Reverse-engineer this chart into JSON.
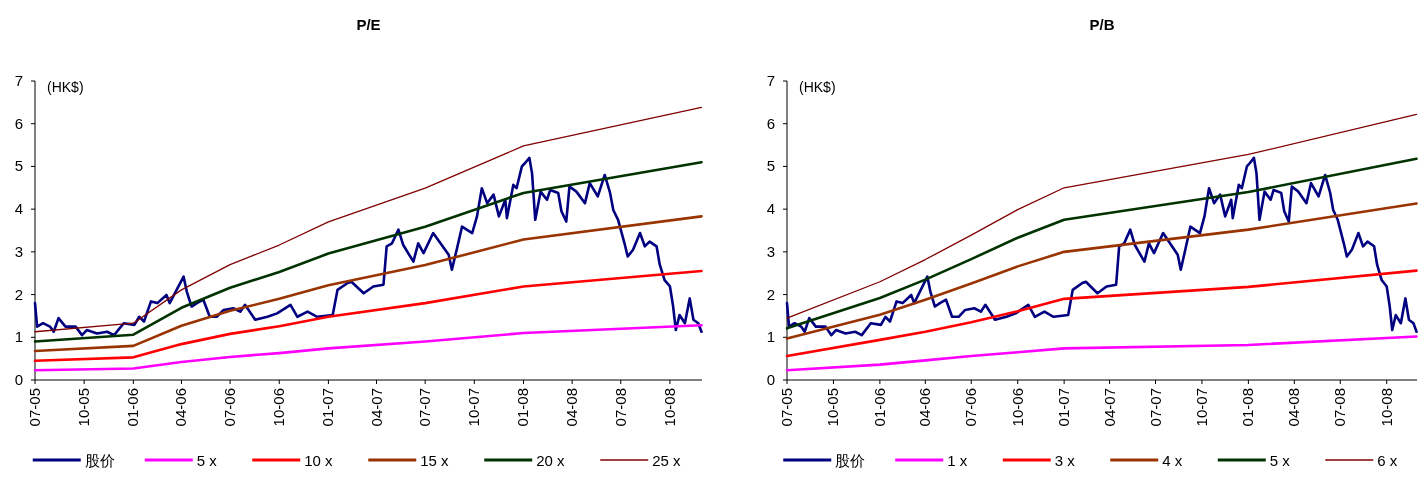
{
  "chart_data": [
    {
      "type": "line",
      "title": "P/E",
      "ylabel": "(HK$)",
      "xlim": [
        "2005-07-01",
        "2008-11-30"
      ],
      "ylim": [
        0,
        7
      ],
      "yticks": [
        0,
        1,
        2,
        3,
        4,
        5,
        6,
        7
      ],
      "xticks": [
        {
          "value": "2005-07-01",
          "label": "07-05"
        },
        {
          "value": "2005-10-01",
          "label": "10-05"
        },
        {
          "value": "2006-01-01",
          "label": "01-06"
        },
        {
          "value": "2006-04-01",
          "label": "04-06"
        },
        {
          "value": "2006-07-01",
          "label": "07-06"
        },
        {
          "value": "2006-10-01",
          "label": "10-06"
        },
        {
          "value": "2007-01-01",
          "label": "01-07"
        },
        {
          "value": "2007-04-01",
          "label": "04-07"
        },
        {
          "value": "2007-07-01",
          "label": "07-07"
        },
        {
          "value": "2007-10-01",
          "label": "10-07"
        },
        {
          "value": "2008-01-01",
          "label": "01-08"
        },
        {
          "value": "2008-04-01",
          "label": "04-08"
        },
        {
          "value": "2008-07-01",
          "label": "07-08"
        },
        {
          "value": "2008-10-01",
          "label": "10-08"
        }
      ],
      "legend": "bottom",
      "series": [
        {
          "name": "股价",
          "color": "#000080",
          "x": [
            "2005-07-01",
            "2005-07-05",
            "2005-07-16",
            "2005-07-29",
            "2005-08-05",
            "2005-08-14",
            "2005-08-27",
            "2005-09-15",
            "2005-09-27",
            "2005-10-06",
            "2005-10-25",
            "2005-11-13",
            "2005-11-26",
            "2005-12-14",
            "2006-01-03",
            "2006-01-12",
            "2006-01-21",
            "2006-02-03",
            "2006-02-15",
            "2006-03-04",
            "2006-03-10",
            "2006-03-23",
            "2006-04-05",
            "2006-04-11",
            "2006-04-20",
            "2006-04-30",
            "2006-05-12",
            "2006-05-24",
            "2006-06-06",
            "2006-06-19",
            "2006-07-07",
            "2006-07-20",
            "2006-07-29",
            "2006-08-17",
            "2006-09-09",
            "2006-09-27",
            "2006-10-22",
            "2006-11-04",
            "2006-11-23",
            "2006-12-11",
            "2007-01-09",
            "2007-01-18",
            "2007-02-06",
            "2007-02-13",
            "2007-03-08",
            "2007-03-26",
            "2007-04-14",
            "2007-04-20",
            "2007-04-30",
            "2007-05-12",
            "2007-05-21",
            "2007-06-09",
            "2007-06-18",
            "2007-06-28",
            "2007-07-16",
            "2007-08-01",
            "2007-08-14",
            "2007-08-20",
            "2007-08-29",
            "2007-09-08",
            "2007-09-27",
            "2007-10-06",
            "2007-10-15",
            "2007-10-25",
            "2007-11-06",
            "2007-11-16",
            "2007-11-28",
            "2007-12-01",
            "2007-12-13",
            "2007-12-19",
            "2007-12-29",
            "2008-01-04",
            "2008-01-12",
            "2008-01-17",
            "2008-01-23",
            "2008-02-02",
            "2008-02-14",
            "2008-02-20",
            "2008-03-06",
            "2008-03-12",
            "2008-03-21",
            "2008-03-27",
            "2008-04-09",
            "2008-04-25",
            "2008-05-04",
            "2008-05-19",
            "2008-06-01",
            "2008-06-11",
            "2008-06-17",
            "2008-06-26",
            "2008-07-08",
            "2008-07-14",
            "2008-07-24",
            "2008-08-06",
            "2008-08-15",
            "2008-08-24",
            "2008-09-06",
            "2008-09-12",
            "2008-09-21",
            "2008-10-01",
            "2008-10-07",
            "2008-10-12",
            "2008-10-19",
            "2008-10-29",
            "2008-11-07",
            "2008-11-14",
            "2008-11-23",
            "2008-11-29"
          ],
          "values": [
            1.8,
            1.25,
            1.33,
            1.25,
            1.13,
            1.45,
            1.25,
            1.25,
            1.05,
            1.17,
            1.09,
            1.13,
            1.05,
            1.33,
            1.29,
            1.48,
            1.37,
            1.84,
            1.8,
            1.99,
            1.8,
            2.11,
            2.42,
            2.07,
            1.72,
            1.8,
            1.88,
            1.48,
            1.48,
            1.64,
            1.68,
            1.6,
            1.76,
            1.41,
            1.48,
            1.56,
            1.76,
            1.48,
            1.6,
            1.48,
            1.52,
            2.11,
            2.27,
            2.3,
            2.03,
            2.19,
            2.23,
            3.13,
            3.2,
            3.52,
            3.16,
            2.77,
            3.2,
            2.97,
            3.44,
            3.16,
            2.93,
            2.58,
            3.05,
            3.59,
            3.44,
            3.83,
            4.49,
            4.14,
            4.34,
            3.83,
            4.22,
            3.79,
            4.57,
            4.49,
            5.0,
            5.08,
            5.2,
            4.84,
            3.75,
            4.41,
            4.22,
            4.45,
            4.38,
            3.95,
            3.71,
            4.53,
            4.41,
            4.14,
            4.61,
            4.3,
            4.8,
            4.38,
            3.98,
            3.75,
            3.2,
            2.89,
            3.05,
            3.44,
            3.13,
            3.24,
            3.13,
            2.7,
            2.34,
            2.19,
            1.72,
            1.17,
            1.52,
            1.33,
            1.91,
            1.41,
            1.33,
            1.13
          ]
        },
        {
          "name": "5 x",
          "color": "#ff00ff",
          "x": [
            "2005-07-01",
            "2006-01-01",
            "2006-04-01",
            "2006-07-01",
            "2006-10-01",
            "2007-01-01",
            "2007-07-01",
            "2008-01-01",
            "2008-11-29"
          ],
          "values": [
            0.23,
            0.27,
            0.42,
            0.54,
            0.63,
            0.74,
            0.9,
            1.1,
            1.28
          ]
        },
        {
          "name": "10 x",
          "color": "#ff0000",
          "x": [
            "2005-07-01",
            "2006-01-01",
            "2006-04-01",
            "2006-07-01",
            "2006-10-01",
            "2007-01-01",
            "2007-07-01",
            "2008-01-01",
            "2008-11-29"
          ],
          "values": [
            0.45,
            0.53,
            0.84,
            1.08,
            1.26,
            1.48,
            1.8,
            2.19,
            2.55
          ]
        },
        {
          "name": "15 x",
          "color": "#993300",
          "x": [
            "2005-07-01",
            "2006-01-01",
            "2006-04-01",
            "2006-07-01",
            "2006-10-01",
            "2007-01-01",
            "2007-07-01",
            "2008-01-01",
            "2008-11-29"
          ],
          "values": [
            0.68,
            0.8,
            1.27,
            1.62,
            1.9,
            2.22,
            2.69,
            3.29,
            3.83
          ]
        },
        {
          "name": "20 x",
          "color": "#003300",
          "x": [
            "2005-07-01",
            "2006-01-01",
            "2006-04-01",
            "2006-07-01",
            "2006-10-01",
            "2007-01-01",
            "2007-07-01",
            "2008-01-01",
            "2008-11-29"
          ],
          "values": [
            0.9,
            1.06,
            1.69,
            2.16,
            2.53,
            2.96,
            3.59,
            4.38,
            5.1
          ]
        },
        {
          "name": "25 x",
          "color": "#800000",
          "x": [
            "2005-07-01",
            "2006-01-01",
            "2006-04-01",
            "2006-07-01",
            "2006-10-01",
            "2007-01-01",
            "2007-07-01",
            "2008-01-01",
            "2008-11-29"
          ],
          "values": [
            1.13,
            1.33,
            2.11,
            2.7,
            3.16,
            3.7,
            4.49,
            5.48,
            6.38
          ]
        }
      ]
    },
    {
      "type": "line",
      "title": "P/B",
      "ylabel": "(HK$)",
      "xlim": [
        "2005-07-01",
        "2008-11-30"
      ],
      "ylim": [
        0,
        7
      ],
      "yticks": [
        0,
        1,
        2,
        3,
        4,
        5,
        6,
        7
      ],
      "xticks": [
        {
          "value": "2005-07-01",
          "label": "07-05"
        },
        {
          "value": "2005-10-01",
          "label": "10-05"
        },
        {
          "value": "2006-01-01",
          "label": "01-06"
        },
        {
          "value": "2006-04-01",
          "label": "04-06"
        },
        {
          "value": "2006-07-01",
          "label": "07-06"
        },
        {
          "value": "2006-10-01",
          "label": "10-06"
        },
        {
          "value": "2007-01-01",
          "label": "01-07"
        },
        {
          "value": "2007-04-01",
          "label": "04-07"
        },
        {
          "value": "2007-07-01",
          "label": "07-07"
        },
        {
          "value": "2007-10-01",
          "label": "10-07"
        },
        {
          "value": "2008-01-01",
          "label": "01-08"
        },
        {
          "value": "2008-04-01",
          "label": "04-08"
        },
        {
          "value": "2008-07-01",
          "label": "07-08"
        },
        {
          "value": "2008-10-01",
          "label": "10-08"
        }
      ],
      "legend": "bottom",
      "series": [
        {
          "name": "股价",
          "color": "#000080",
          "x": [
            "2005-07-01",
            "2005-07-05",
            "2005-07-16",
            "2005-07-29",
            "2005-08-05",
            "2005-08-14",
            "2005-08-27",
            "2005-09-15",
            "2005-09-27",
            "2005-10-06",
            "2005-10-25",
            "2005-11-13",
            "2005-11-26",
            "2005-12-14",
            "2006-01-03",
            "2006-01-12",
            "2006-01-21",
            "2006-02-03",
            "2006-02-15",
            "2006-03-04",
            "2006-03-10",
            "2006-03-23",
            "2006-04-05",
            "2006-04-11",
            "2006-04-20",
            "2006-04-30",
            "2006-05-12",
            "2006-05-24",
            "2006-06-06",
            "2006-06-19",
            "2006-07-07",
            "2006-07-20",
            "2006-07-29",
            "2006-08-17",
            "2006-09-09",
            "2006-09-27",
            "2006-10-22",
            "2006-11-04",
            "2006-11-23",
            "2006-12-11",
            "2007-01-09",
            "2007-01-18",
            "2007-02-06",
            "2007-02-13",
            "2007-03-08",
            "2007-03-26",
            "2007-04-14",
            "2007-04-20",
            "2007-04-30",
            "2007-05-12",
            "2007-05-21",
            "2007-06-09",
            "2007-06-18",
            "2007-06-28",
            "2007-07-16",
            "2007-08-01",
            "2007-08-14",
            "2007-08-20",
            "2007-08-29",
            "2007-09-08",
            "2007-09-27",
            "2007-10-06",
            "2007-10-15",
            "2007-10-25",
            "2007-11-06",
            "2007-11-16",
            "2007-11-28",
            "2007-12-01",
            "2007-12-13",
            "2007-12-19",
            "2007-12-29",
            "2008-01-04",
            "2008-01-12",
            "2008-01-17",
            "2008-01-23",
            "2008-02-02",
            "2008-02-14",
            "2008-02-20",
            "2008-03-06",
            "2008-03-12",
            "2008-03-21",
            "2008-03-27",
            "2008-04-09",
            "2008-04-25",
            "2008-05-04",
            "2008-05-19",
            "2008-06-01",
            "2008-06-11",
            "2008-06-17",
            "2008-06-26",
            "2008-07-08",
            "2008-07-14",
            "2008-07-24",
            "2008-08-06",
            "2008-08-15",
            "2008-08-24",
            "2008-09-06",
            "2008-09-12",
            "2008-09-21",
            "2008-10-01",
            "2008-10-07",
            "2008-10-12",
            "2008-10-19",
            "2008-10-29",
            "2008-11-07",
            "2008-11-14",
            "2008-11-23",
            "2008-11-29"
          ],
          "values": [
            1.8,
            1.25,
            1.33,
            1.25,
            1.13,
            1.45,
            1.25,
            1.25,
            1.05,
            1.17,
            1.09,
            1.13,
            1.05,
            1.33,
            1.29,
            1.48,
            1.37,
            1.84,
            1.8,
            1.99,
            1.8,
            2.11,
            2.42,
            2.07,
            1.72,
            1.8,
            1.88,
            1.48,
            1.48,
            1.64,
            1.68,
            1.6,
            1.76,
            1.41,
            1.48,
            1.56,
            1.76,
            1.48,
            1.6,
            1.48,
            1.52,
            2.11,
            2.27,
            2.3,
            2.03,
            2.19,
            2.23,
            3.13,
            3.2,
            3.52,
            3.16,
            2.77,
            3.2,
            2.97,
            3.44,
            3.16,
            2.93,
            2.58,
            3.05,
            3.59,
            3.44,
            3.83,
            4.49,
            4.14,
            4.34,
            3.83,
            4.22,
            3.79,
            4.57,
            4.49,
            5.0,
            5.08,
            5.2,
            4.84,
            3.75,
            4.41,
            4.22,
            4.45,
            4.38,
            3.95,
            3.71,
            4.53,
            4.41,
            4.14,
            4.61,
            4.3,
            4.8,
            4.38,
            3.98,
            3.75,
            3.2,
            2.89,
            3.05,
            3.44,
            3.13,
            3.24,
            3.13,
            2.7,
            2.34,
            2.19,
            1.72,
            1.17,
            1.52,
            1.33,
            1.91,
            1.41,
            1.33,
            1.13
          ]
        },
        {
          "name": "1 x",
          "color": "#ff00ff",
          "x": [
            "2005-07-01",
            "2006-01-01",
            "2006-04-01",
            "2006-07-01",
            "2006-10-01",
            "2007-01-01",
            "2008-01-01",
            "2008-11-29"
          ],
          "values": [
            0.23,
            0.36,
            0.46,
            0.56,
            0.65,
            0.74,
            0.82,
            1.02
          ]
        },
        {
          "name": "3 x",
          "color": "#ff0000",
          "x": [
            "2005-07-01",
            "2006-01-01",
            "2006-04-01",
            "2006-07-01",
            "2006-10-01",
            "2007-01-01",
            "2008-01-01",
            "2008-11-29"
          ],
          "values": [
            0.56,
            0.94,
            1.13,
            1.35,
            1.61,
            1.9,
            2.18,
            2.56
          ]
        },
        {
          "name": "4 x",
          "color": "#993300",
          "x": [
            "2005-07-01",
            "2006-01-01",
            "2006-04-01",
            "2006-07-01",
            "2006-10-01",
            "2007-01-01",
            "2008-01-01",
            "2008-11-29"
          ],
          "values": [
            0.97,
            1.53,
            1.88,
            2.26,
            2.66,
            3.0,
            3.52,
            4.13
          ]
        },
        {
          "name": "5 x",
          "color": "#003300",
          "x": [
            "2005-07-01",
            "2006-01-01",
            "2006-04-01",
            "2006-07-01",
            "2006-10-01",
            "2007-01-01",
            "2008-01-01",
            "2008-11-29"
          ],
          "values": [
            1.21,
            1.92,
            2.35,
            2.83,
            3.33,
            3.75,
            4.4,
            5.18
          ]
        },
        {
          "name": "6 x",
          "color": "#800000",
          "x": [
            "2005-07-01",
            "2006-01-01",
            "2006-04-01",
            "2006-07-01",
            "2006-10-01",
            "2007-01-01",
            "2008-01-01",
            "2008-11-29"
          ],
          "values": [
            1.45,
            2.3,
            2.82,
            3.39,
            3.99,
            4.5,
            5.28,
            6.22
          ]
        }
      ]
    }
  ]
}
